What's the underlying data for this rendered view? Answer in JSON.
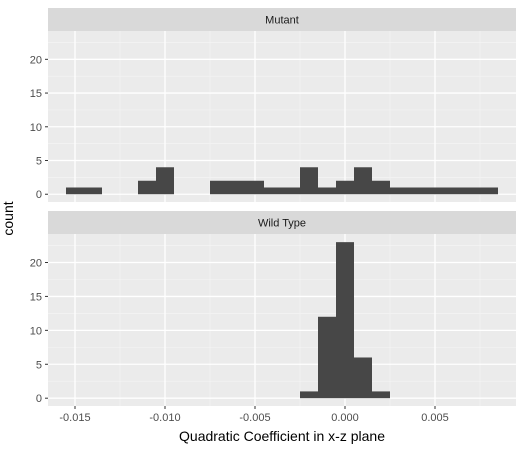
{
  "chart_data": {
    "type": "histogram",
    "xlabel": "Quadratic Coefficient in x-z plane",
    "ylabel": "count",
    "xlim": [
      -0.0165,
      0.0095
    ],
    "ylim": [
      -1.15,
      24.2
    ],
    "x_ticks": [
      -0.015,
      -0.01,
      -0.005,
      0.0,
      0.005
    ],
    "x_tick_labels": [
      "-0.015",
      "-0.010",
      "-0.005",
      "0.000",
      "0.005"
    ],
    "y_ticks": [
      0,
      5,
      10,
      15,
      20
    ],
    "y_tick_labels": [
      "0",
      "5",
      "10",
      "15",
      "20"
    ],
    "bar_color": "#474747",
    "panel_bg": "#ebebeb",
    "strip_bg": "#d9d9d9",
    "panels": [
      {
        "name": "Mutant",
        "bins": [
          {
            "x0": -0.0155,
            "x1": -0.0135,
            "count": 1
          },
          {
            "x0": -0.0115,
            "x1": -0.0105,
            "count": 2
          },
          {
            "x0": -0.0105,
            "x1": -0.0095,
            "count": 4
          },
          {
            "x0": -0.0075,
            "x1": -0.0045,
            "count": 2
          },
          {
            "x0": -0.0045,
            "x1": -0.0025,
            "count": 1
          },
          {
            "x0": -0.0025,
            "x1": -0.0015,
            "count": 4
          },
          {
            "x0": -0.0015,
            "x1": -0.0005,
            "count": 1
          },
          {
            "x0": -0.0005,
            "x1": 0.0005,
            "count": 2
          },
          {
            "x0": 0.0005,
            "x1": 0.0015,
            "count": 4
          },
          {
            "x0": 0.0015,
            "x1": 0.0025,
            "count": 2
          },
          {
            "x0": 0.0025,
            "x1": 0.0085,
            "count": 1
          }
        ]
      },
      {
        "name": "Wild Type",
        "bins": [
          {
            "x0": -0.0025,
            "x1": -0.0015,
            "count": 1
          },
          {
            "x0": -0.0015,
            "x1": -0.0005,
            "count": 12
          },
          {
            "x0": -0.0005,
            "x1": 0.0005,
            "count": 23
          },
          {
            "x0": 0.0005,
            "x1": 0.0015,
            "count": 6
          },
          {
            "x0": 0.0015,
            "x1": 0.0025,
            "count": 1
          }
        ]
      }
    ]
  }
}
